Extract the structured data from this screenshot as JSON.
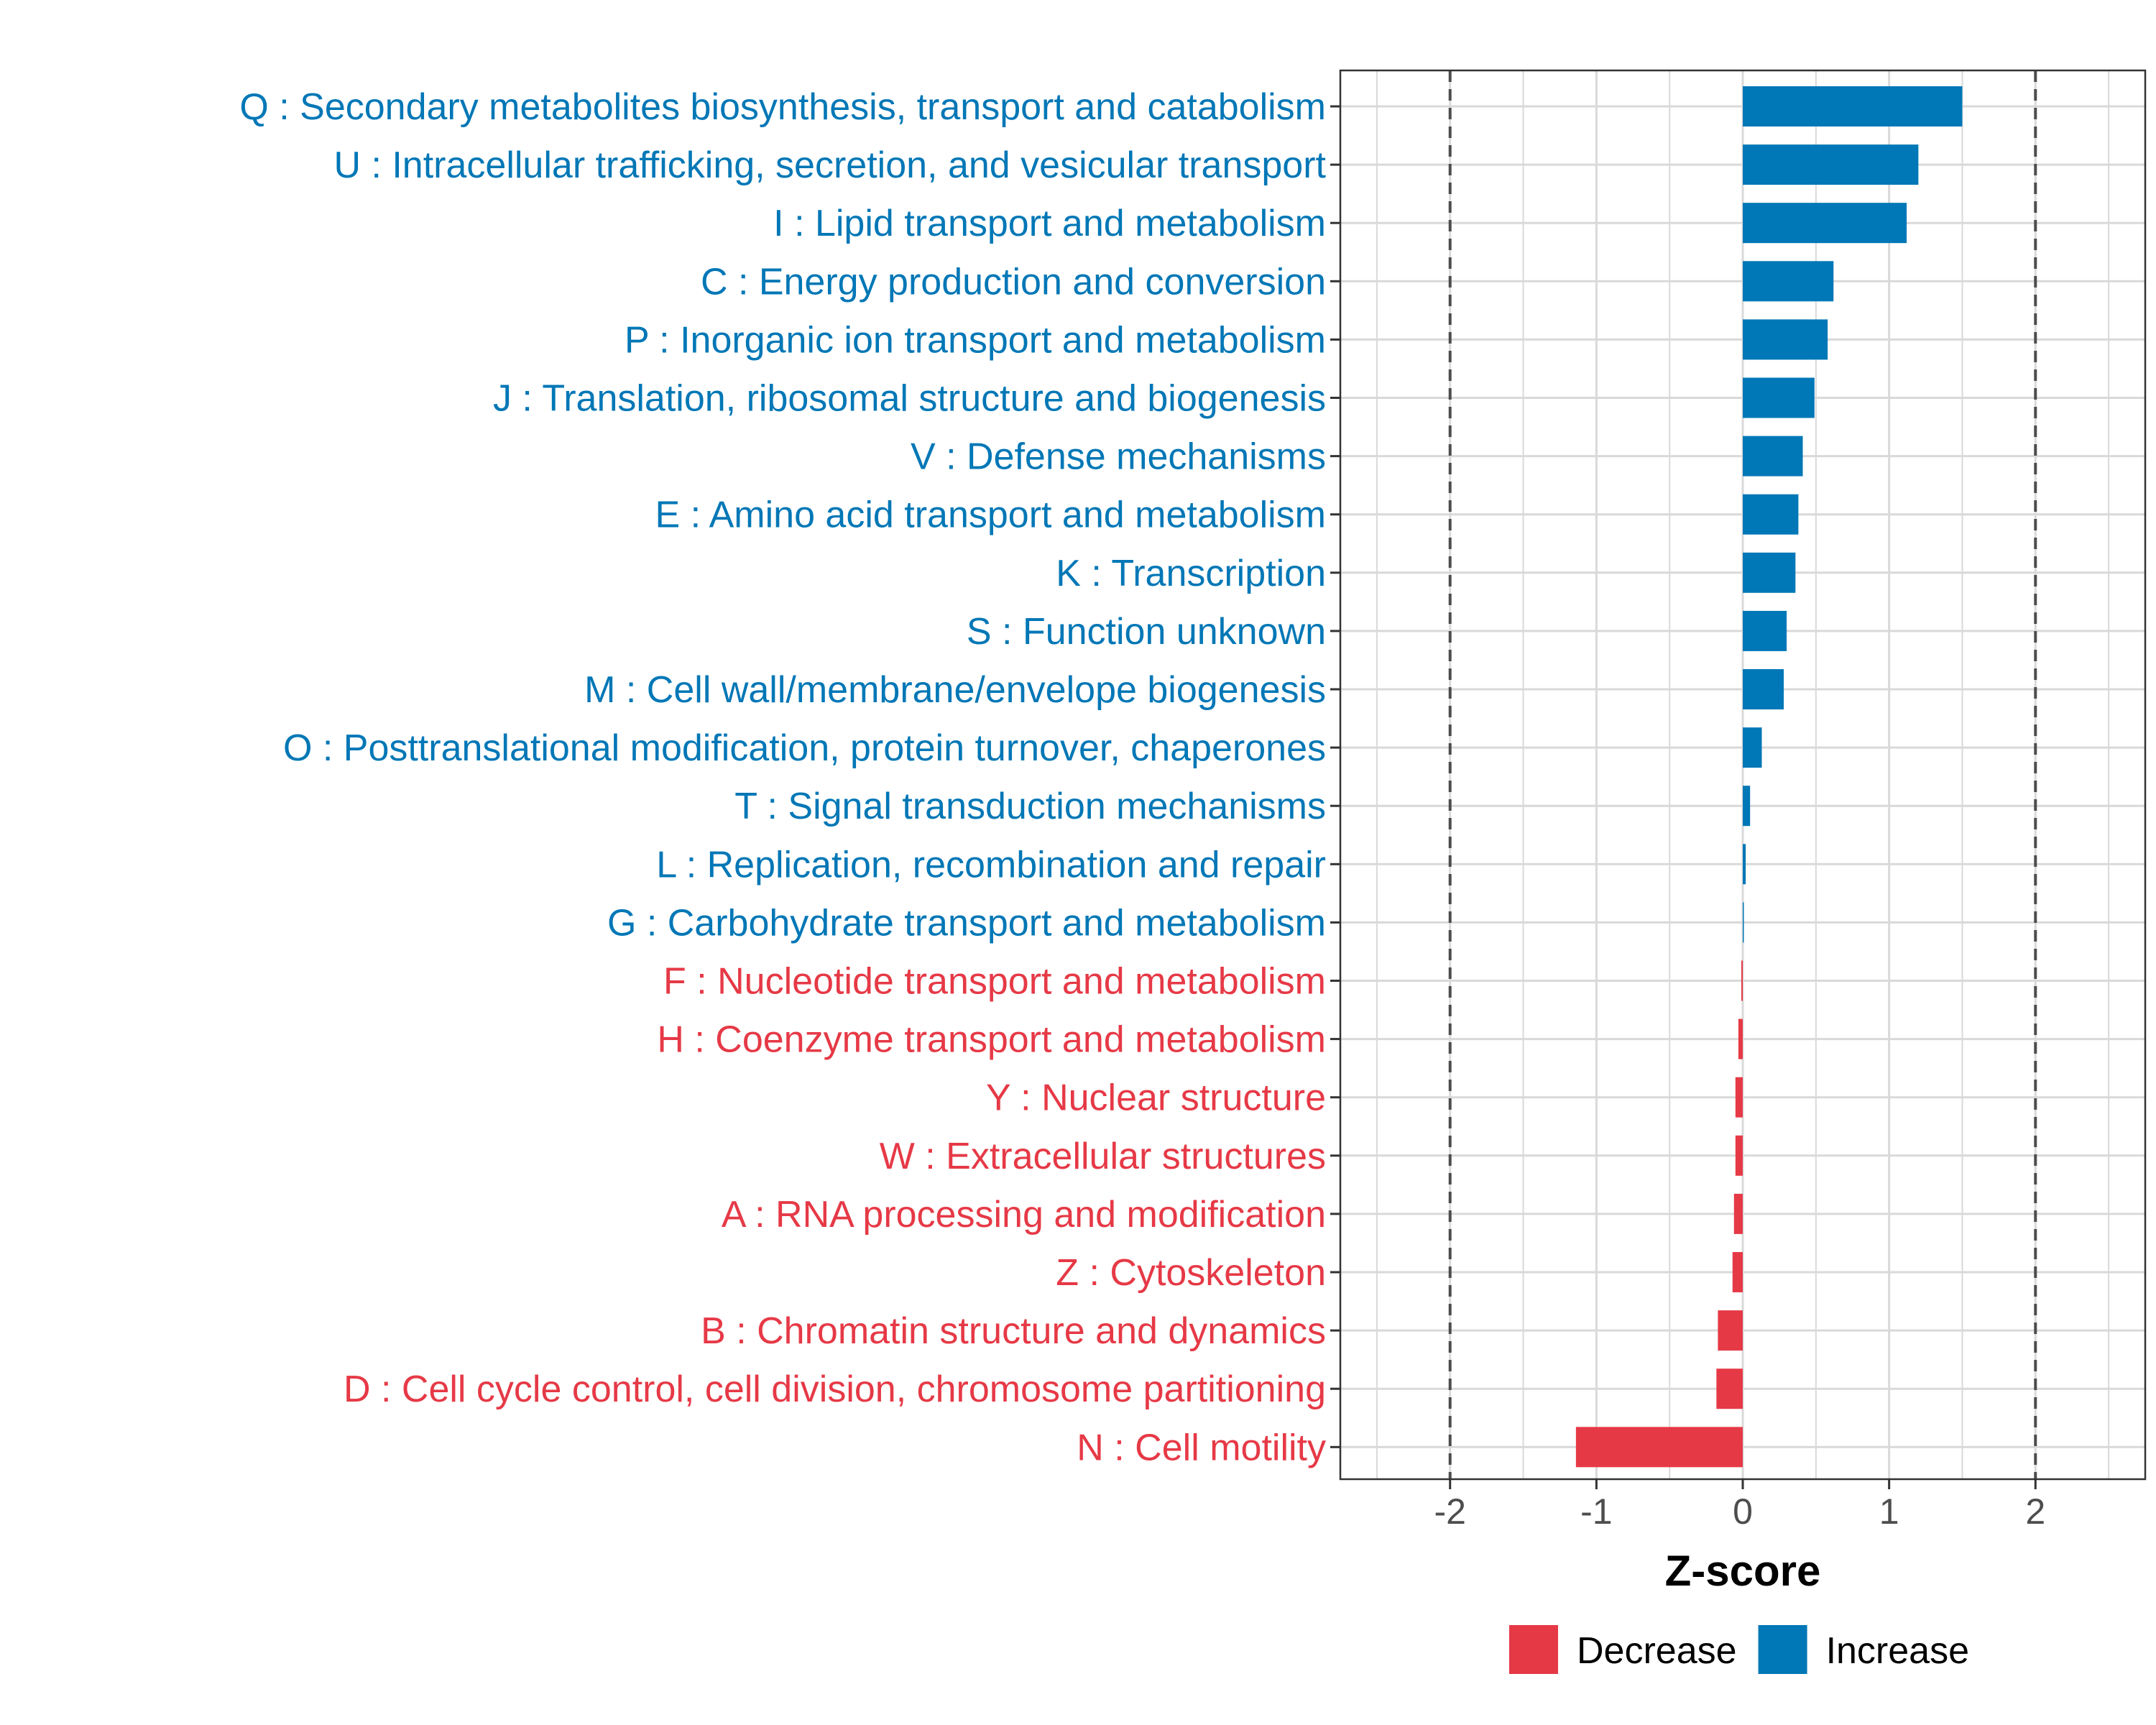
{
  "chart_data": {
    "type": "bar",
    "orientation": "horizontal",
    "title": "",
    "xlabel": "Z-score",
    "ylabel": "",
    "xlim": [
      -2.75,
      2.75
    ],
    "xticks": [
      -2,
      -1,
      0,
      1,
      2
    ],
    "xtick_labels": [
      "-2",
      "-1",
      "0",
      "1",
      "2"
    ],
    "reference_lines": [
      -2,
      2
    ],
    "grid": true,
    "categories": [
      "Q : Secondary metabolites biosynthesis, transport and catabolism",
      "U : Intracellular trafficking, secretion, and vesicular transport",
      "I : Lipid transport and metabolism",
      "C : Energy production and conversion",
      "P : Inorganic ion transport and metabolism",
      "J : Translation, ribosomal structure and biogenesis",
      "V : Defense mechanisms",
      "E : Amino acid transport and metabolism",
      "K : Transcription",
      "S : Function unknown",
      "M : Cell wall/membrane/envelope biogenesis",
      "O : Posttranslational modification, protein turnover, chaperones",
      "T : Signal transduction mechanisms",
      "L : Replication, recombination and repair",
      "G : Carbohydrate transport and metabolism",
      "F : Nucleotide transport and metabolism",
      "H : Coenzyme transport and metabolism",
      "Y : Nuclear structure",
      "W : Extracellular structures",
      "A : RNA processing and modification",
      "Z : Cytoskeleton",
      "B : Chromatin structure and dynamics",
      "D : Cell cycle control, cell division, chromosome partitioning",
      "N : Cell motility"
    ],
    "values": [
      1.5,
      1.2,
      1.12,
      0.62,
      0.58,
      0.49,
      0.41,
      0.38,
      0.36,
      0.3,
      0.28,
      0.13,
      0.05,
      0.02,
      0.005,
      -0.01,
      -0.03,
      -0.05,
      -0.05,
      -0.06,
      -0.07,
      -0.17,
      -0.18,
      -1.14
    ],
    "groups": [
      "Increase",
      "Increase",
      "Increase",
      "Increase",
      "Increase",
      "Increase",
      "Increase",
      "Increase",
      "Increase",
      "Increase",
      "Increase",
      "Increase",
      "Increase",
      "Increase",
      "Increase",
      "Decrease",
      "Decrease",
      "Decrease",
      "Decrease",
      "Decrease",
      "Decrease",
      "Decrease",
      "Decrease",
      "Decrease"
    ],
    "legend": {
      "placement": "bottom",
      "items": [
        {
          "label": "Decrease",
          "color": "#e63946"
        },
        {
          "label": "Increase",
          "color": "#0077b6"
        }
      ]
    },
    "colors": {
      "increase": "#0077b6",
      "decrease": "#e63946",
      "grid": "#d9d9d9",
      "reference_line": "#4d4d4d",
      "panel_border": "#333333"
    }
  }
}
